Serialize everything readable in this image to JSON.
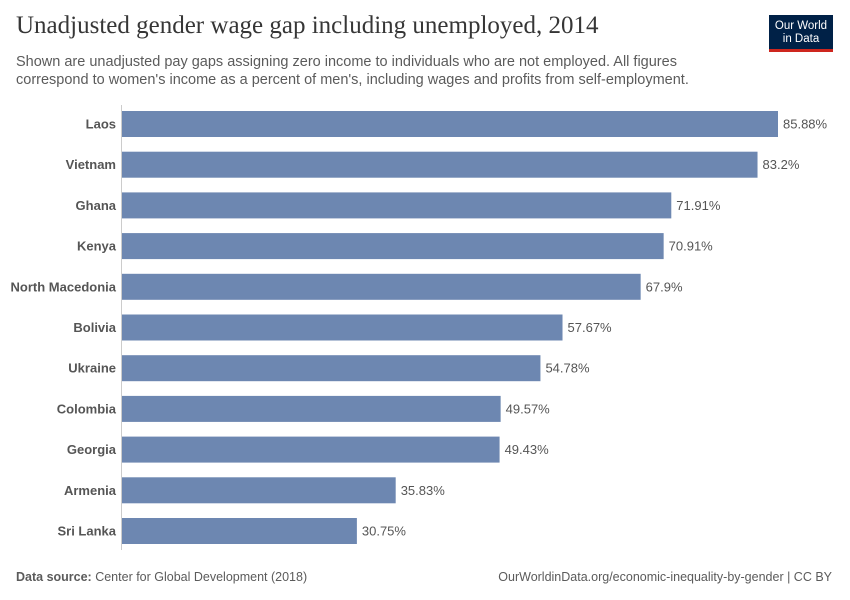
{
  "header": {
    "title": "Unadjusted gender wage gap including unemployed, 2014",
    "subtitle": "Shown are unadjusted pay gaps assigning zero income to individuals who are not employed. All figures correspond to women's income as a percent of men's, including wages and profits from self-employment.",
    "logo": "Our World in Data"
  },
  "footer": {
    "source_label": "Data source:",
    "source": " Center for Global Development (2018)",
    "url": "OurWorldinData.org/economic-inequality-by-gender | CC BY"
  },
  "chart_data": {
    "type": "bar",
    "orientation": "horizontal",
    "unit": "%",
    "bar_color": "#6d87b1",
    "categories": [
      "Laos",
      "Vietnam",
      "Ghana",
      "Kenya",
      "North Macedonia",
      "Bolivia",
      "Ukraine",
      "Colombia",
      "Georgia",
      "Armenia",
      "Sri Lanka"
    ],
    "values": [
      85.88,
      83.2,
      71.91,
      70.91,
      67.9,
      57.67,
      54.78,
      49.57,
      49.43,
      35.83,
      30.75
    ],
    "labels": [
      "85.88%",
      "83.2%",
      "71.91%",
      "70.91%",
      "67.9%",
      "57.67%",
      "54.78%",
      "49.57%",
      "49.43%",
      "35.83%",
      "30.75%"
    ]
  }
}
